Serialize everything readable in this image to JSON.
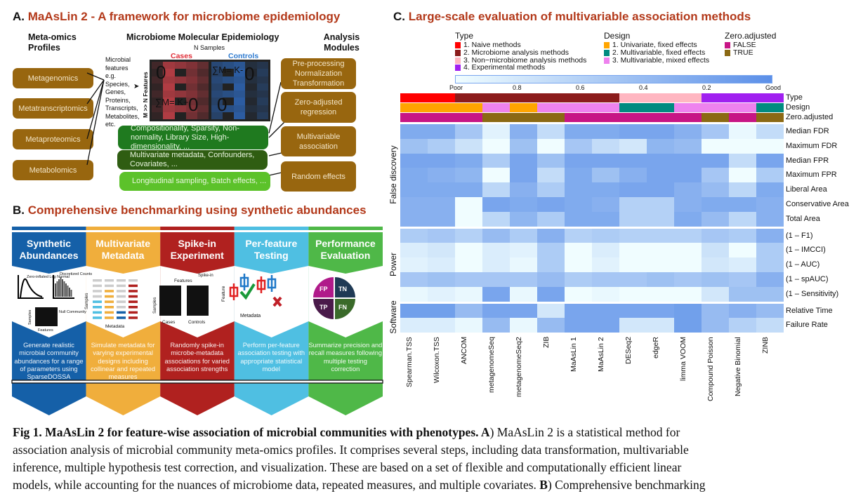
{
  "panelA": {
    "letter": "A.",
    "title": "MaAsLin 2 - A framework for microbiome epidemiology",
    "col1_heading_1": "Meta-omics",
    "col1_heading_2": "Profiles",
    "profiles": [
      "Metagenomics",
      "Metatranscriptomics",
      "Metaproteomics",
      "Metabolomics"
    ],
    "center_heading": "Microbiome Molecular Epidemiology",
    "n_samples": "N Samples",
    "cases": "Cases",
    "controls": "Controls",
    "m_features": "M >> N Features",
    "features_text": [
      "Microbial",
      "features",
      "e.g.",
      "Species,",
      "Genes,",
      "Proteins,",
      "Transcripts,",
      "Metabolites,",
      "etc."
    ],
    "zero": "0",
    "sum_plus": "∑M= K+",
    "sum_minus": "∑M= K-",
    "challenges": [
      "Compositionality, Sparsity, Non-normality, Library Size, High-dimensionality, ...",
      "Multivariate metadata, Confounders, Covariates, ...",
      "Longitudinal sampling, Batch effects, ..."
    ],
    "col3_heading_1": "Analysis",
    "col3_heading_2": "Modules",
    "modules": [
      "Pre-processing Normalization Transformation",
      "Zero-adjusted regression",
      "Multivariable association",
      "Random effects"
    ],
    "colors": {
      "profile": "#98660f",
      "green1": "#1f7a1f",
      "green2": "#2f5d12",
      "green3": "#5cc22a",
      "cases": "#e0303a",
      "controls": "#2f7bd0"
    }
  },
  "panelB": {
    "letter": "B.",
    "title": "Comprehensive benchmarking using synthetic abundances",
    "steps": [
      {
        "title": "Synthetic Abundances",
        "desc": "Generate realistic microbial community abundances for a range of parameters using SparseDOSSA",
        "color": "#1560a8",
        "labels": [
          "Zero-inflated Log Normal",
          "Discretized Counts",
          "Null Community",
          "Samples",
          "Features"
        ]
      },
      {
        "title": "Multivariate Metadata",
        "desc": "Simulate metadata for varying experimental designs including collinear and repeated measures",
        "color": "#f0ae3c",
        "labels": [
          "Samples",
          "Metadata"
        ]
      },
      {
        "title": "Spike-in Experiment",
        "desc": "Randomly spike-in microbe-metadata associations for varied association strengths",
        "color": "#b0211f",
        "labels": [
          "Features",
          "Spike-in",
          "Samples",
          "Cases",
          "Controls"
        ]
      },
      {
        "title": "Per-feature Testing",
        "desc": "Perform per-feature association testing with appropriate statistical model",
        "color": "#4fbfe2",
        "labels": [
          "Feature",
          "Metadata"
        ]
      },
      {
        "title": "Performance Evaluation",
        "desc": "Summarize precision and recall measures following multiple testing correction",
        "color": "#4fb848",
        "labels": [
          "FP",
          "TN",
          "TP",
          "FN"
        ]
      }
    ]
  },
  "panelC": {
    "letter": "C.",
    "title": "Large-scale evaluation of multivariable association methods",
    "legend": {
      "type": {
        "title": "Type",
        "items": [
          {
            "label": "1. Naive methods",
            "color": "#ff0000"
          },
          {
            "label": "2. Microbiome analysis methods",
            "color": "#8b1c1c"
          },
          {
            "label": "3. Non−microbiome analysis methods",
            "color": "#ffb6c1"
          },
          {
            "label": "4. Experimental methods",
            "color": "#a020f0"
          }
        ]
      },
      "design": {
        "title": "Design",
        "items": [
          {
            "label": "1. Univariate, fixed effects",
            "color": "#ffa500"
          },
          {
            "label": "2. Multivariable, fixed effects",
            "color": "#008b80"
          },
          {
            "label": "3. Multivariable, mixed effects",
            "color": "#ee82ee"
          }
        ]
      },
      "zero": {
        "title": "Zero.adjusted",
        "items": [
          {
            "label": "FALSE",
            "color": "#c71585"
          },
          {
            "label": "TRUE",
            "color": "#8b6914"
          }
        ]
      }
    },
    "colorbar": {
      "ticks": [
        "Poor",
        "0.8",
        "0.6",
        "0.4",
        "0.2",
        "Good"
      ],
      "low_color": "#f0fdff",
      "high_color": "#5b8fe8"
    }
  },
  "chart_data": {
    "type": "heatmap",
    "columns": [
      "Spearman.TSS",
      "Wilcoxon.TSS",
      "ANCOM",
      "metagenomeSeq",
      "metagenomeSeq2",
      "ZIB",
      "MaAsLin 1",
      "MaAsLin 2",
      "DESeq2",
      "edgeR",
      "limma VOOM",
      "Compound Poisson",
      "Negative Binomial",
      "ZINB"
    ],
    "annotations": {
      "row_labels": [
        "Type",
        "Design",
        "Zero.adjusted"
      ],
      "Type": [
        1,
        1,
        2,
        2,
        2,
        2,
        2,
        2,
        3,
        3,
        3,
        4,
        4,
        4
      ],
      "Design": [
        1,
        1,
        1,
        3,
        1,
        3,
        3,
        3,
        2,
        2,
        3,
        3,
        3,
        2
      ],
      "Zero.adjusted": [
        "FALSE",
        "FALSE",
        "FALSE",
        "TRUE",
        "TRUE",
        "TRUE",
        "FALSE",
        "FALSE",
        "FALSE",
        "FALSE",
        "FALSE",
        "TRUE",
        "FALSE",
        "TRUE"
      ]
    },
    "groups": [
      {
        "name": "False discovery",
        "rows": [
          {
            "label": "Median FDR",
            "values": [
              0.25,
              0.25,
              0.5,
              0.9,
              0.3,
              0.7,
              0.25,
              0.25,
              0.2,
              0.2,
              0.3,
              0.5,
              0.95,
              0.7
            ]
          },
          {
            "label": "Maximum FDR",
            "values": [
              0.45,
              0.55,
              0.75,
              1.0,
              0.45,
              1.0,
              0.5,
              0.7,
              0.8,
              0.35,
              0.4,
              1.0,
              1.0,
              1.0
            ]
          },
          {
            "label": "Median FPR",
            "values": [
              0.2,
              0.2,
              0.25,
              0.55,
              0.2,
              0.45,
              0.2,
              0.2,
              0.2,
              0.2,
              0.2,
              0.2,
              0.7,
              0.2
            ]
          },
          {
            "label": "Maximum FPR",
            "values": [
              0.25,
              0.3,
              0.35,
              1.0,
              0.2,
              0.7,
              0.25,
              0.45,
              0.3,
              0.2,
              0.2,
              0.5,
              1.0,
              0.55
            ]
          },
          {
            "label": "Liberal Area",
            "values": [
              0.25,
              0.25,
              0.25,
              0.65,
              0.3,
              0.55,
              0.25,
              0.25,
              0.2,
              0.2,
              0.3,
              0.4,
              0.65,
              0.25
            ]
          },
          {
            "label": "Conservative Area",
            "values": [
              0.3,
              0.3,
              1.0,
              0.2,
              0.25,
              0.2,
              0.25,
              0.3,
              0.6,
              0.6,
              0.3,
              0.25,
              0.25,
              0.3
            ]
          },
          {
            "label": "Total Area",
            "values": [
              0.3,
              0.3,
              1.0,
              0.65,
              0.35,
              0.55,
              0.25,
              0.25,
              0.6,
              0.6,
              0.25,
              0.4,
              0.65,
              0.3
            ]
          }
        ]
      },
      {
        "name": "Power",
        "rows": [
          {
            "label": "(1 – F1)",
            "values": [
              0.55,
              0.5,
              0.6,
              0.4,
              0.55,
              0.3,
              0.6,
              0.55,
              0.6,
              0.6,
              0.6,
              0.5,
              0.55,
              0.3
            ]
          },
          {
            "label": "(1 – IMCCI)",
            "values": [
              0.85,
              0.8,
              1.0,
              0.85,
              0.9,
              0.55,
              1.0,
              0.85,
              1.0,
              1.0,
              1.0,
              0.75,
              1.0,
              0.55
            ]
          },
          {
            "label": "(1 – AUC)",
            "values": [
              0.9,
              0.85,
              1.0,
              0.85,
              0.95,
              0.55,
              1.0,
              0.9,
              1.0,
              1.0,
              1.0,
              0.8,
              0.85,
              0.55
            ]
          },
          {
            "label": "(1 – spAUC)",
            "values": [
              0.5,
              0.45,
              0.5,
              0.5,
              0.5,
              0.4,
              0.55,
              0.5,
              0.5,
              0.45,
              0.5,
              0.45,
              0.5,
              0.3
            ]
          },
          {
            "label": "(1 – Sensitivity)",
            "values": [
              0.95,
              0.9,
              0.95,
              0.2,
              0.95,
              0.2,
              1.0,
              0.95,
              1.0,
              1.0,
              1.0,
              0.8,
              0.45,
              0.45
            ]
          }
        ]
      },
      {
        "name": "Software",
        "rows": [
          {
            "label": "Relative Time",
            "values": [
              0.15,
              0.15,
              0.4,
              0.2,
              0.2,
              0.8,
              0.2,
              0.2,
              0.2,
              0.2,
              0.15,
              0.4,
              0.3,
              0.4
            ]
          },
          {
            "label": "Failure Rate",
            "values": [
              0.85,
              0.85,
              0.95,
              0.4,
              0.95,
              0.4,
              0.2,
              0.2,
              0.8,
              0.8,
              0.15,
              0.4,
              0.6,
              0.7
            ]
          }
        ]
      }
    ],
    "scale": {
      "range": [
        1,
        0
      ],
      "low_label": "Poor",
      "high_label": "Good"
    }
  },
  "caption": {
    "bold": "Fig 1. MaAsLin 2 for feature-wise association of microbial communities with phenotypes. A",
    "l1": ") MaAsLin 2 is a statistical method for",
    "l2": "association analysis of microbial community meta-omics profiles. It comprises several steps, including data transformation, multivariable",
    "l3": "inference, multiple hypothesis test correction, and visualization. These are based on a set of flexible and computationally efficient linear",
    "l4a": "models, while accounting for the nuances of microbiome data, repeated measures, and multiple covariates. ",
    "l4b": "B",
    "l4c": ") Comprehensive benchmarking"
  }
}
